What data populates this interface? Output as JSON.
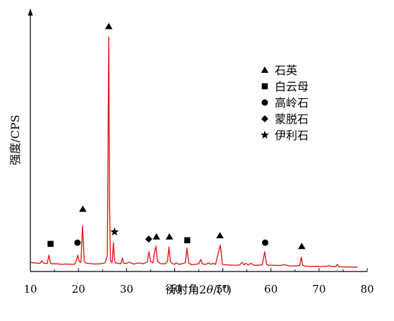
{
  "chart_data": {
    "type": "line",
    "xlabel_prefix": "衍射角2",
    "xlabel_theta": "θ",
    "xlabel_suffix": "/(°)",
    "ylabel": "强度/CPS",
    "xlim": [
      10,
      80
    ],
    "ylim": [
      0,
      100
    ],
    "xticks": [
      10,
      20,
      30,
      40,
      50,
      60,
      70,
      80
    ],
    "grid": false,
    "legend_position": "top-right",
    "series": [
      {
        "color": "#e3191c",
        "x": [
          10,
          11,
          12,
          12.4,
          12.8,
          13.5,
          13.85,
          14.2,
          14.6,
          15.5,
          16.5,
          17.5,
          18.5,
          19.2,
          19.6,
          19.85,
          20.2,
          20.5,
          20.85,
          21.2,
          21.6,
          22.5,
          23.5,
          24.5,
          25.5,
          26.0,
          26.3,
          26.45,
          26.65,
          27.0,
          27.25,
          27.5,
          27.8,
          28.2,
          28.8,
          29.1,
          29.4,
          30.0,
          30.5,
          31.5,
          32.5,
          33.5,
          34.3,
          34.65,
          35.0,
          35.5,
          35.8,
          36.1,
          36.4,
          37.0,
          38.0,
          38.5,
          38.8,
          39.1,
          39.5,
          40.0,
          40.3,
          40.8,
          41.5,
          42.2,
          42.55,
          42.9,
          43.5,
          44.3,
          45.0,
          45.4,
          45.8,
          46.5,
          47.0,
          47.5,
          48.0,
          48.5,
          49.1,
          49.5,
          49.9,
          50.5,
          51.5,
          52.5,
          53.5,
          54.0,
          54.4,
          54.8,
          55.3,
          55.8,
          56.5,
          57.5,
          58.2,
          58.7,
          59.1,
          59.6,
          60.5,
          61.5,
          62.3,
          62.8,
          63.5,
          64.5,
          65.5,
          66.0,
          66.3,
          66.6,
          67.0,
          67.5,
          68.5,
          69.5,
          70.5,
          71.5,
          72.0,
          72.5,
          73.5,
          73.8,
          74.1,
          75.0,
          76.0,
          77.0,
          78.0
        ],
        "y": [
          3.8,
          3.5,
          3.4,
          4.4,
          3.4,
          3.3,
          6.8,
          3.4,
          3.2,
          3.2,
          3.0,
          3.1,
          3.0,
          3.0,
          4.6,
          6.8,
          4.0,
          3.8,
          19.0,
          4.2,
          3.5,
          3.3,
          3.1,
          3.2,
          3.6,
          6.5,
          97.5,
          30.0,
          4.5,
          3.6,
          12.0,
          4.4,
          3.5,
          3.4,
          3.2,
          5.6,
          3.4,
          3.4,
          3.9,
          3.1,
          3.6,
          3.2,
          4.0,
          8.2,
          4.2,
          3.6,
          7.8,
          10.5,
          4.4,
          3.3,
          3.2,
          4.2,
          10.2,
          4.2,
          3.3,
          3.0,
          3.6,
          3.0,
          3.2,
          3.6,
          9.8,
          3.6,
          2.8,
          3.0,
          3.2,
          5.0,
          3.1,
          3.0,
          3.6,
          3.0,
          3.4,
          3.0,
          8.0,
          11.0,
          3.0,
          2.8,
          2.7,
          2.6,
          2.7,
          3.8,
          2.8,
          3.4,
          2.7,
          3.4,
          2.6,
          2.6,
          2.8,
          8.2,
          2.9,
          2.6,
          2.6,
          2.5,
          2.6,
          2.9,
          2.4,
          2.3,
          2.3,
          2.6,
          6.0,
          2.6,
          2.3,
          2.2,
          2.1,
          2.2,
          2.1,
          2.1,
          2.5,
          2.1,
          2.0,
          3.0,
          2.0,
          1.9,
          1.9,
          1.8,
          1.8
        ]
      }
    ],
    "legend": [
      {
        "marker": "triangle",
        "label": "石英"
      },
      {
        "marker": "square",
        "label": "白云母"
      },
      {
        "marker": "circle",
        "label": "高岭石"
      },
      {
        "marker": "diamond",
        "label": "蒙脱石"
      },
      {
        "marker": "star",
        "label": "伊利石"
      }
    ],
    "annotations": [
      {
        "marker": "square",
        "x": 14.2,
        "y": 11.5
      },
      {
        "marker": "circle",
        "x": 19.8,
        "y": 12.0
      },
      {
        "marker": "triangle",
        "x": 20.9,
        "y": 26.0
      },
      {
        "marker": "triangle",
        "x": 26.3,
        "y": 102.0
      },
      {
        "marker": "star",
        "x": 27.5,
        "y": 16.5
      },
      {
        "marker": "diamond",
        "x": 34.6,
        "y": 13.5
      },
      {
        "marker": "triangle",
        "x": 36.2,
        "y": 14.5
      },
      {
        "marker": "triangle",
        "x": 38.9,
        "y": 14.5
      },
      {
        "marker": "square",
        "x": 42.6,
        "y": 13.0
      },
      {
        "marker": "triangle",
        "x": 49.4,
        "y": 15.0
      },
      {
        "marker": "circle",
        "x": 58.8,
        "y": 12.0
      },
      {
        "marker": "triangle",
        "x": 66.4,
        "y": 10.5
      }
    ]
  }
}
